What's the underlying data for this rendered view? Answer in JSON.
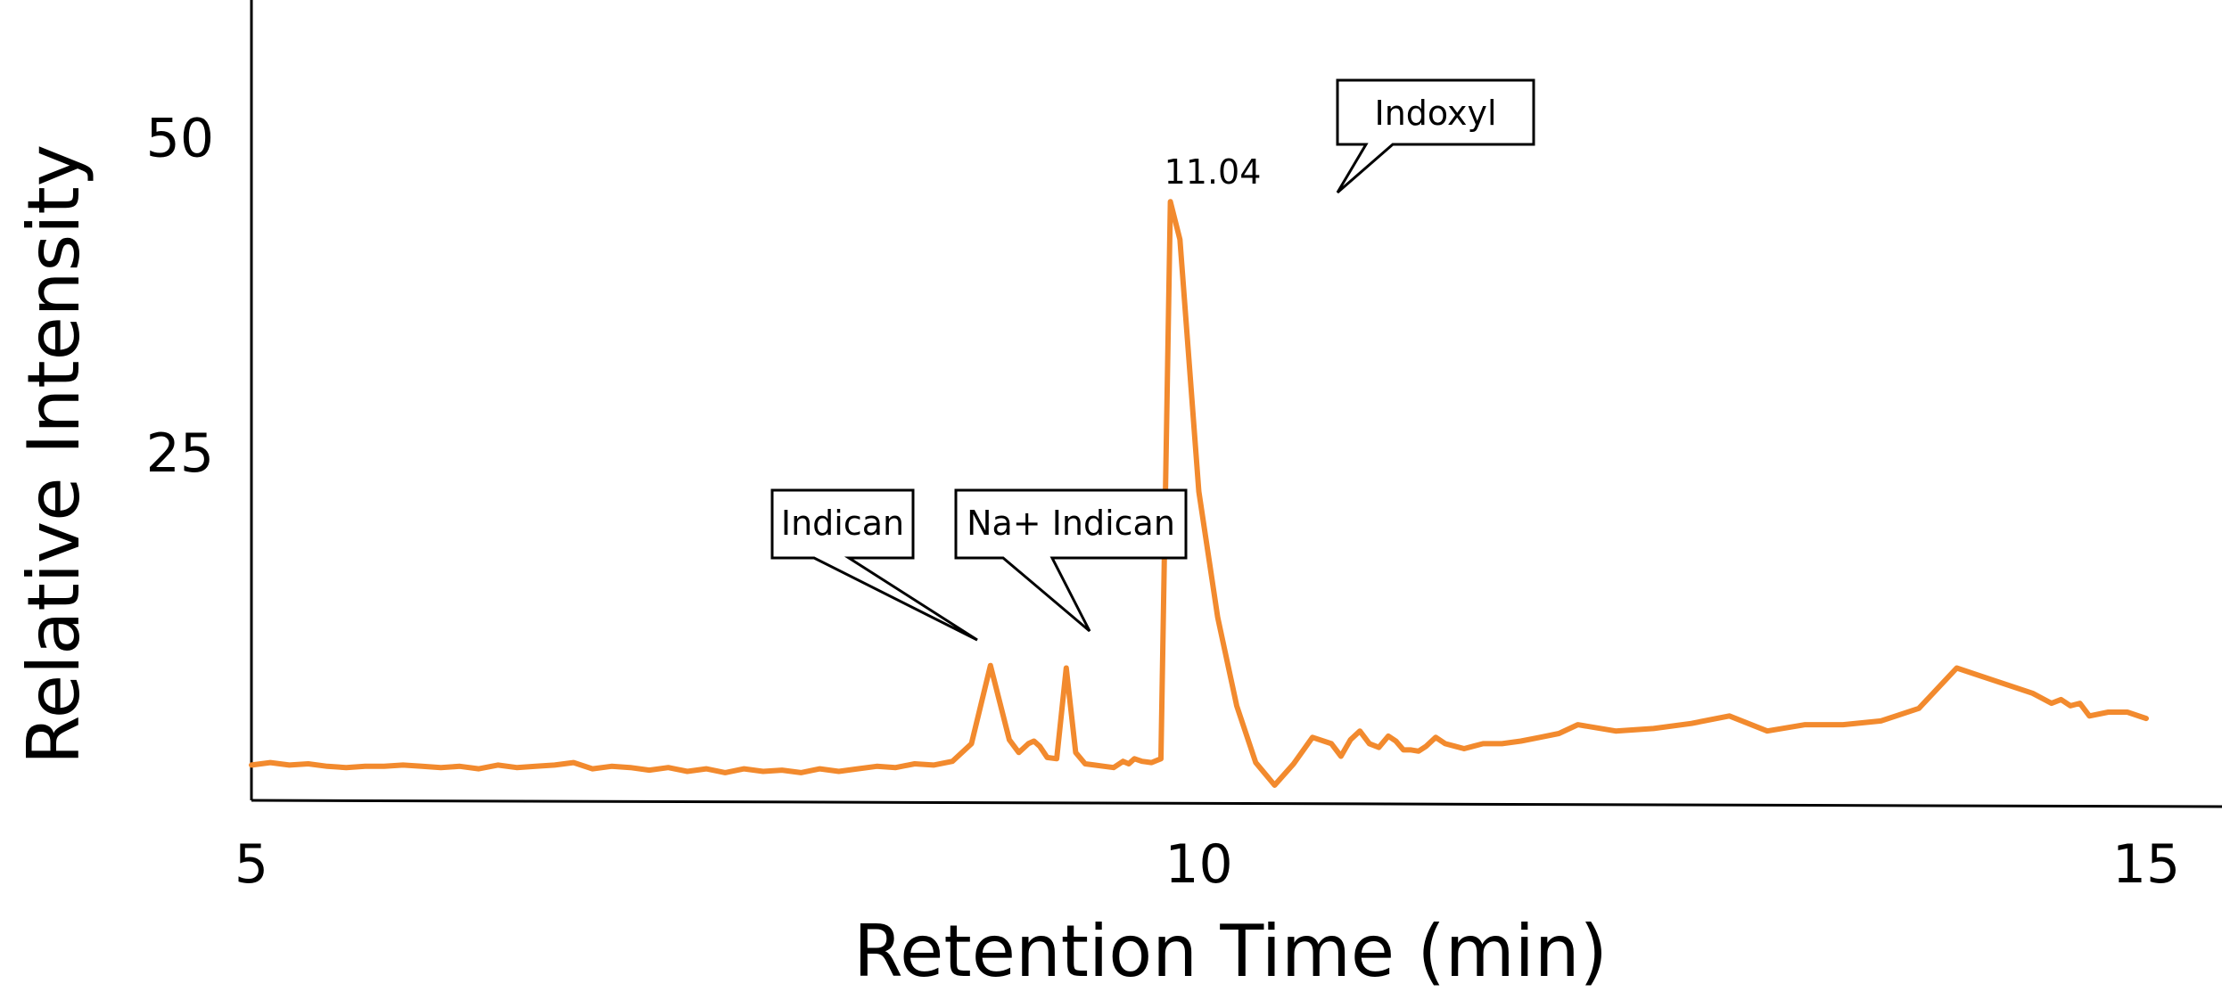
{
  "chart_data": {
    "type": "line",
    "xlabel": "Retention Time (min)",
    "ylabel": "Relative Intensity",
    "xlim": [
      5,
      15.4
    ],
    "ylim": [
      -2.5,
      61
    ],
    "x_ticks": [
      5,
      10,
      15
    ],
    "y_ticks": [
      25,
      50
    ],
    "grid": false,
    "series": [
      {
        "color": "#F28A2E",
        "x": [
          5.0,
          5.1,
          5.2,
          5.3,
          5.4,
          5.5,
          5.6,
          5.7,
          5.8,
          5.9,
          6.0,
          6.1,
          6.2,
          6.3,
          6.4,
          6.5,
          6.6,
          6.7,
          6.8,
          6.9,
          7.0,
          7.1,
          7.2,
          7.3,
          7.4,
          7.5,
          7.6,
          7.7,
          7.8,
          7.9,
          8.0,
          8.1,
          8.2,
          8.3,
          8.4,
          8.5,
          8.6,
          8.7,
          8.8,
          8.9,
          9.0,
          9.05,
          9.1,
          9.13,
          9.16,
          9.2,
          9.25,
          9.3,
          9.35,
          9.4,
          9.45,
          9.5,
          9.55,
          9.6,
          9.63,
          9.66,
          9.7,
          9.75,
          9.8,
          9.85,
          9.9,
          10.0,
          10.1,
          10.2,
          10.3,
          10.4,
          10.5,
          10.6,
          10.7,
          10.75,
          10.8,
          10.85,
          10.9,
          10.95,
          11.0,
          11.04,
          11.08,
          11.12,
          11.16,
          11.2,
          11.25,
          11.3,
          11.35,
          11.4,
          11.45,
          11.5,
          11.6,
          11.7,
          11.8,
          11.9,
          12.0,
          12.2,
          12.4,
          12.6,
          12.8,
          13.0,
          13.2,
          13.4,
          13.6,
          13.8,
          14.0,
          14.2,
          14.4,
          14.5,
          14.55,
          14.6,
          14.65,
          14.7,
          14.8,
          14.9,
          15.0
        ],
        "values": [
          0.3,
          0.5,
          0.3,
          0.4,
          0.2,
          0.1,
          0.2,
          0.2,
          0.3,
          0.2,
          0.1,
          0.2,
          0.0,
          0.3,
          0.1,
          0.2,
          0.3,
          0.5,
          0.0,
          0.2,
          0.1,
          -0.1,
          0.1,
          -0.2,
          0.0,
          -0.3,
          0.0,
          -0.2,
          -0.1,
          -0.3,
          0.0,
          -0.2,
          0.0,
          0.2,
          0.1,
          0.4,
          0.3,
          0.6,
          2.0,
          8.2,
          2.3,
          1.3,
          2.0,
          2.2,
          1.8,
          0.9,
          0.8,
          8.0,
          1.3,
          0.4,
          0.3,
          0.2,
          0.1,
          0.6,
          0.4,
          0.8,
          0.6,
          0.5,
          0.8,
          45.0,
          42.0,
          22.0,
          12.0,
          5.0,
          0.5,
          -1.3,
          0.4,
          2.5,
          2.0,
          1.0,
          2.3,
          3.0,
          2.0,
          1.7,
          2.6,
          2.2,
          1.5,
          1.5,
          1.4,
          1.8,
          2.5,
          2.0,
          1.8,
          1.6,
          1.8,
          2.0,
          2.0,
          2.2,
          2.5,
          2.8,
          3.5,
          3.0,
          3.2,
          3.6,
          4.2,
          3.0,
          3.5,
          3.5,
          3.8,
          4.8,
          8.0,
          7.0,
          6.0,
          5.2,
          5.5,
          5.0,
          5.2,
          4.2,
          4.5,
          4.5,
          4.0
        ],
        "x_values_note_removed": ""
      }
    ],
    "annotations": [
      {
        "text": "Indican"
      },
      {
        "text": "Na+ Indican"
      },
      {
        "text": "Indoxyl"
      },
      {
        "text": "11.04"
      }
    ]
  }
}
